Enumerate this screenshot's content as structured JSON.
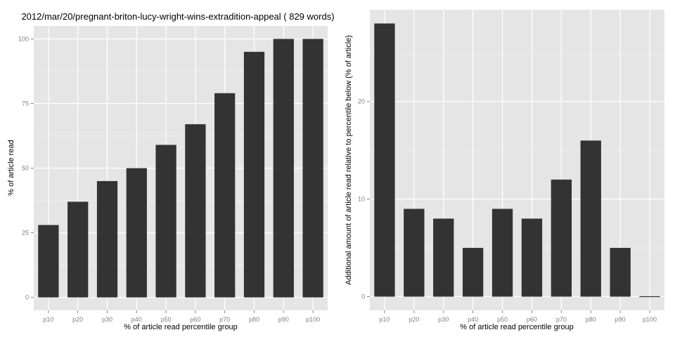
{
  "chart_data": [
    {
      "type": "bar",
      "title": "2012/mar/20/pregnant-briton-lucy-wright-wins-extradition-appeal ( 829 words)",
      "xlabel": "% of article read percentile group",
      "ylabel": "% of article read",
      "categories": [
        "p10",
        "p20",
        "p30",
        "p40",
        "p50",
        "p60",
        "p70",
        "p80",
        "p90",
        "p100"
      ],
      "values": [
        28,
        37,
        45,
        50,
        59,
        67,
        79,
        95,
        100,
        100
      ],
      "ylim": [
        -5,
        105
      ],
      "yticks": [
        0,
        25,
        50,
        75,
        100
      ],
      "grid": true,
      "bar_color": "#333333",
      "panel_color": "#e5e5e5"
    },
    {
      "type": "bar",
      "title": "",
      "xlabel": "% of article read percentile group",
      "ylabel": "Additional amount of article read relative to percentile below (% of article)",
      "categories": [
        "p10",
        "p20",
        "p30",
        "p40",
        "p50",
        "p60",
        "p70",
        "p80",
        "p90",
        "p100"
      ],
      "values": [
        28,
        9,
        8,
        5,
        9,
        8,
        12,
        16,
        5,
        0
      ],
      "ylim": [
        -1.4,
        29.4
      ],
      "yticks": [
        0,
        10,
        20
      ],
      "grid": true,
      "bar_color": "#333333",
      "panel_color": "#e5e5e5"
    }
  ]
}
